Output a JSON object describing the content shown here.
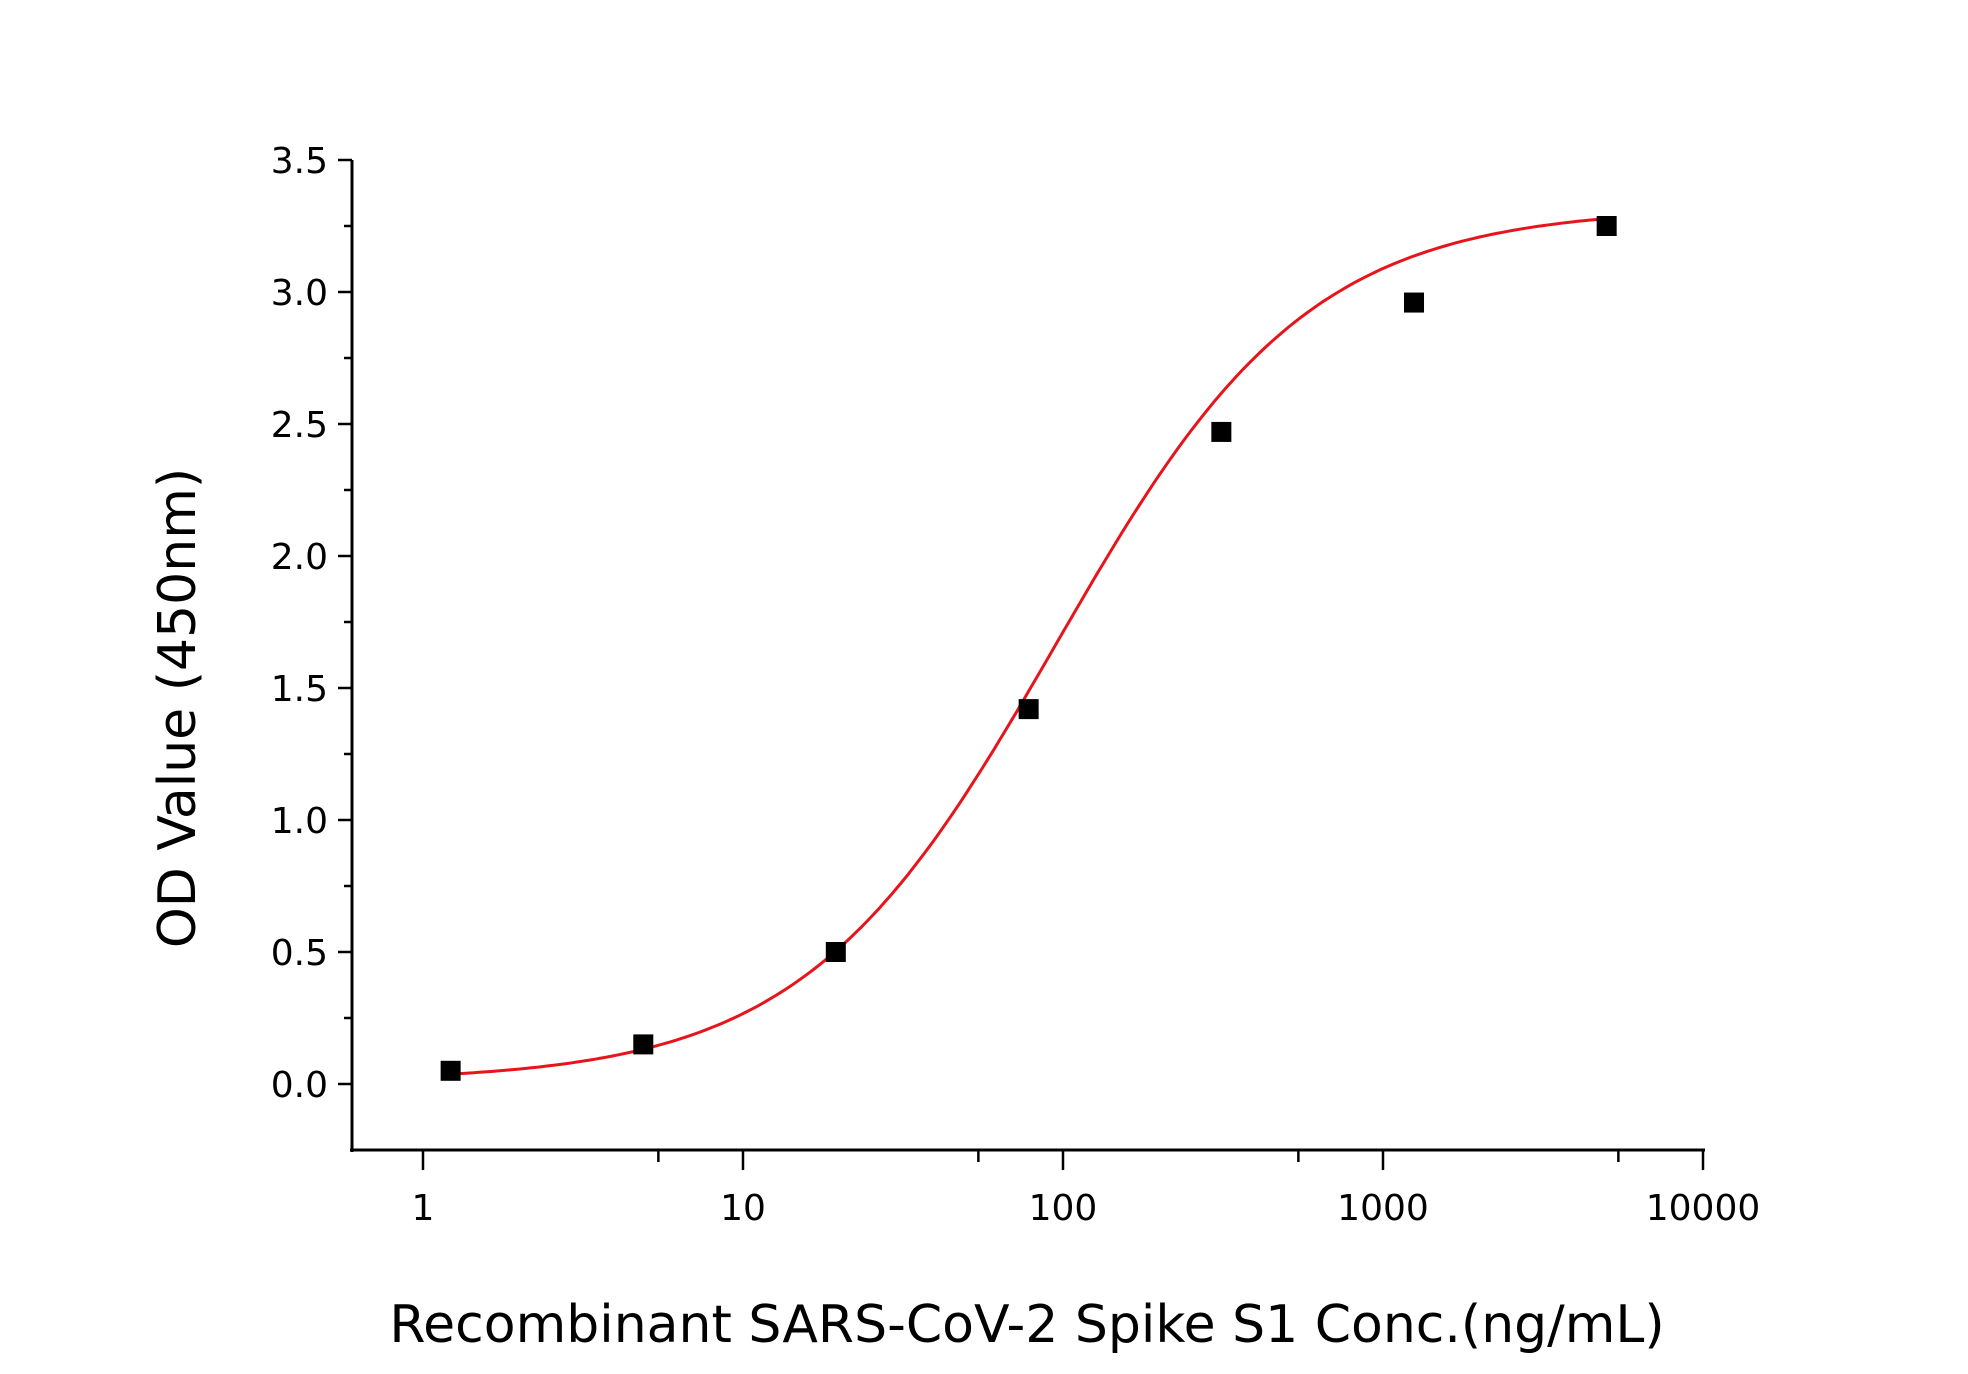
{
  "chart_data": {
    "type": "scatter",
    "title": "",
    "xlabel": "Recombinant SARS-CoV-2 Spike S1 Conc.(ng/mL)",
    "ylabel": "OD Value (450nm)",
    "xscale": "log",
    "xlim": [
      0.6,
      10000
    ],
    "ylim": [
      -0.25,
      3.5
    ],
    "xticks": [
      "1",
      "10",
      "100",
      "1000",
      "10000"
    ],
    "yticks": [
      "0.0",
      "0.5",
      "1.0",
      "1.5",
      "2.0",
      "2.5",
      "3.0",
      "3.5"
    ],
    "grid": false,
    "legend": "none",
    "series": [
      {
        "x": [
          1.22,
          4.88,
          19.5,
          78.1,
          312.5,
          1250,
          5000
        ],
        "y": [
          0.05,
          0.15,
          0.5,
          1.42,
          2.47,
          2.96,
          3.25
        ],
        "marker": "square",
        "color": "#000000",
        "fit": "4-parameter logistic",
        "fit_color": "#e8141b"
      }
    ]
  }
}
